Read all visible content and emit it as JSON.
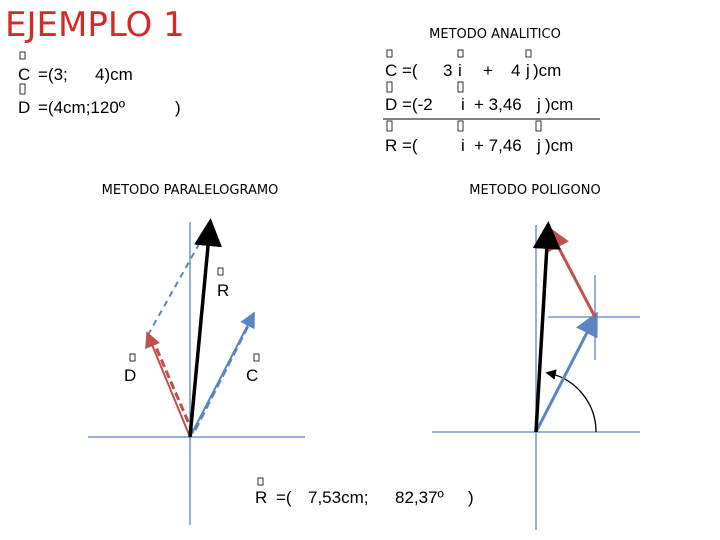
{
  "header": {
    "title": "EJEMPLO 1",
    "analytic_title": "METODO ANALITICO"
  },
  "given": {
    "c": [
      "C",
      "=(3;",
      "4)cm"
    ],
    "d": [
      "D",
      "=(4cm;120º",
      ")"
    ]
  },
  "analytic": {
    "rows": [
      [
        "C",
        "=(",
        "3",
        "i",
        "+",
        "4",
        "j",
        ")cm"
      ],
      [
        "D",
        "=(-2",
        "i",
        "+ 3,46",
        "j",
        ")cm"
      ],
      [
        "R",
        "=(",
        "i",
        "+ 7,46",
        "j",
        ")cm"
      ]
    ]
  },
  "parallelogram": {
    "title": "METODO PARALELOGRAMO",
    "labels": [
      "R",
      "D",
      "C"
    ],
    "result": [
      "R",
      "=(",
      "7,53cm;",
      "82,37º",
      ")"
    ]
  },
  "polygon": {
    "title": "METODO POLIGONO"
  }
}
